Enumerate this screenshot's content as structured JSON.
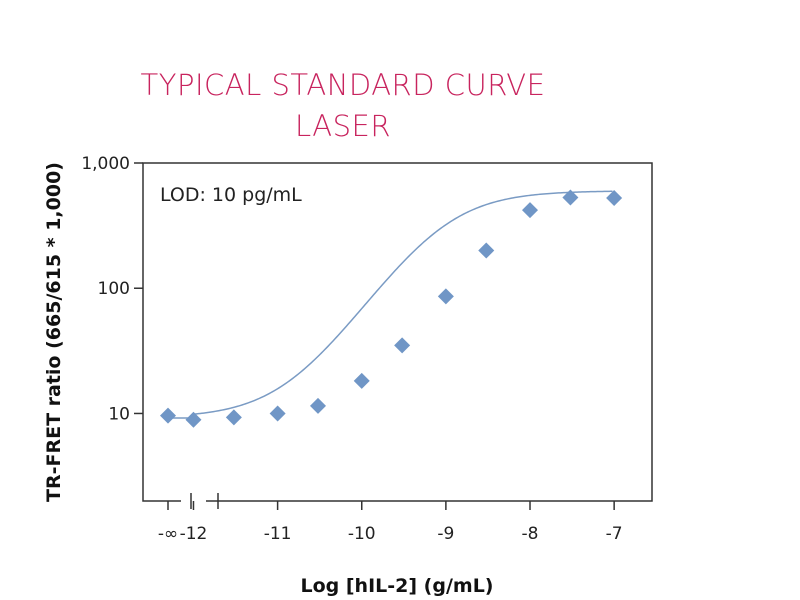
{
  "chart_data": {
    "type": "scatter",
    "title_lines": [
      "TYPICAL STANDARD CURVE",
      "LASER"
    ],
    "xlabel": "Log [hIL-2] (g/mL)",
    "ylabel": "TR-FRET ratio (665/615 * 1,000)",
    "annotation": "LOD: 10 pg/mL",
    "y_scale": "log",
    "ylim": [
      2,
      1000
    ],
    "xlim": [
      -12.6,
      -6.55
    ],
    "x_ticks": [
      {
        "value": "-inf",
        "label": "-∞"
      },
      {
        "value": -12,
        "label": "-12"
      },
      {
        "value": -11,
        "label": "-11"
      },
      {
        "value": -10,
        "label": "-10"
      },
      {
        "value": -9,
        "label": "-9"
      },
      {
        "value": -8,
        "label": "-8"
      },
      {
        "value": -7,
        "label": "-7"
      }
    ],
    "y_ticks": [
      {
        "value": 10,
        "label": "10"
      },
      {
        "value": 100,
        "label": "100"
      },
      {
        "value": 1000,
        "label": "1,000"
      }
    ],
    "series": [
      {
        "marker": "diamond",
        "color": "#7096c6",
        "line_color": "#7a9bc4",
        "points": [
          {
            "x": "-inf",
            "y": 9.6
          },
          {
            "x": -12,
            "y": 8.9
          },
          {
            "x": -11.52,
            "y": 9.3
          },
          {
            "x": -11,
            "y": 10.0
          },
          {
            "x": -10.52,
            "y": 11.5
          },
          {
            "x": -10,
            "y": 18.2
          },
          {
            "x": -9.52,
            "y": 35
          },
          {
            "x": -9,
            "y": 86
          },
          {
            "x": -8.52,
            "y": 200
          },
          {
            "x": -8,
            "y": 420
          },
          {
            "x": -7.52,
            "y": 530
          },
          {
            "x": -7,
            "y": 525
          }
        ],
        "fit": {
          "bottom": 9.2,
          "top": 600,
          "log_ec50": -9.05,
          "hill": 1.0
        }
      }
    ],
    "title_color": "#c8245e",
    "axis_color": "#333333"
  }
}
